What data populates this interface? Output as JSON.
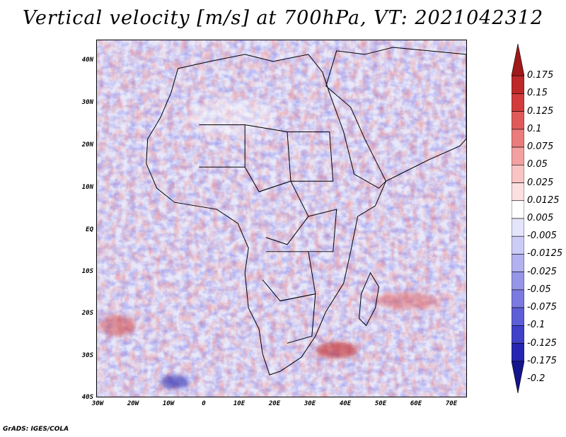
{
  "map": {
    "title": "Vertical velocity [m/s] at 700hPa, VT: 2021042312",
    "variable": "Vertical velocity",
    "units": "m/s",
    "level": "700hPa",
    "valid_time": "2021042312",
    "region": "Africa and surrounding oceans",
    "lat_range": [
      -40,
      45
    ],
    "lon_range": [
      -30,
      75
    ],
    "lat_labels": [
      "40N",
      "30N",
      "20N",
      "10N",
      "EQ",
      "10S",
      "20S",
      "30S",
      "40S"
    ],
    "lon_labels": [
      "30W",
      "20W",
      "10W",
      "0",
      "10E",
      "20E",
      "30E",
      "40E",
      "50E",
      "60E",
      "70E"
    ]
  },
  "colorbar": {
    "labels": [
      "0.175",
      "0.15",
      "0.125",
      "0.1",
      "0.075",
      "0.05",
      "0.025",
      "0.0125",
      "0.005",
      "-0.005",
      "-0.0125",
      "-0.025",
      "-0.05",
      "-0.075",
      "-0.1",
      "-0.125",
      "-0.175",
      "-0.2"
    ],
    "colors": [
      "#a01818",
      "#bd2828",
      "#d23c3c",
      "#e05a5a",
      "#ea7c7c",
      "#f2a0a0",
      "#f8c4c4",
      "#fce0e0",
      "#ffffff",
      "#e4e4fb",
      "#ccccf6",
      "#b2b2f0",
      "#9696e8",
      "#7a7ae0",
      "#5e5ed6",
      "#4040c8",
      "#2626b0",
      "#14148c"
    ]
  },
  "credit": "GrADS: IGES/COLA"
}
